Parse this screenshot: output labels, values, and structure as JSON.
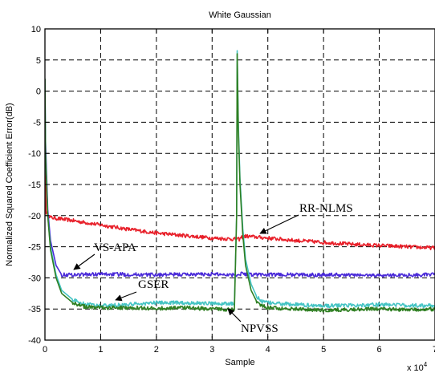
{
  "chart_data": {
    "type": "line",
    "title": "White Gaussian",
    "xlabel": "Sample",
    "ylabel": "Normalized Squared Coefficient Error(dB)",
    "x_exponent_label": "x 10",
    "x_exponent_power": "4",
    "xlim": [
      0,
      7
    ],
    "ylim": [
      -40,
      10
    ],
    "xticks": [
      "0",
      "1",
      "2",
      "3",
      "4",
      "5",
      "6",
      "7"
    ],
    "yticks": [
      "10",
      "5",
      "0",
      "-5",
      "-10",
      "-15",
      "-20",
      "-25",
      "-30",
      "-35",
      "-40"
    ],
    "grid": true,
    "grid_style": "dashed",
    "colors": {
      "RR-NLMS": "#e8202a",
      "VS-APA": "#4a2ad8",
      "GSER": "#45c4c4",
      "NPVSS": "#2f7f22"
    },
    "series": [
      {
        "name": "RR-NLMS",
        "x": [
          0,
          0.005,
          0.02,
          0.1,
          0.5,
          1,
          1.5,
          2,
          2.5,
          3,
          3.45,
          3.5,
          3.52,
          3.6,
          4,
          4.5,
          5,
          5.5,
          6,
          6.5,
          7
        ],
        "y": [
          2,
          -12,
          -19.5,
          -20.3,
          -20.8,
          -21.5,
          -22.2,
          -22.8,
          -23.2,
          -23.6,
          -23.8,
          -23.8,
          -23.5,
          -23.3,
          -23.6,
          -24,
          -24.3,
          -24.6,
          -24.8,
          -25,
          -25.2
        ]
      },
      {
        "name": "VS-APA",
        "x": [
          0,
          0.01,
          0.05,
          0.1,
          0.2,
          0.3,
          0.5,
          1,
          2,
          3,
          3.45,
          3.5,
          3.52,
          3.6,
          4,
          5,
          6,
          7
        ],
        "y": [
          1,
          -8,
          -19,
          -24,
          -28,
          -29.5,
          -29.5,
          -29.4,
          -29.5,
          -29.4,
          -29.5,
          -29.5,
          -29.2,
          -29.4,
          -29.5,
          -29.5,
          -29.6,
          -29.5
        ]
      },
      {
        "name": "GSER",
        "x": [
          0,
          0.01,
          0.05,
          0.1,
          0.2,
          0.3,
          0.5,
          0.7,
          1,
          1.5,
          2,
          2.5,
          3,
          3.4,
          3.44,
          3.45,
          3.47,
          3.5,
          3.55,
          3.6,
          3.7,
          3.8,
          3.9,
          4,
          4.5,
          5,
          5.5,
          6,
          6.5,
          7
        ],
        "y": [
          2,
          -10,
          -20,
          -25,
          -29.5,
          -32,
          -33.5,
          -34.2,
          -34.5,
          -34.3,
          -34,
          -34,
          -34.1,
          -34.2,
          -20,
          6.5,
          -5,
          -14,
          -22,
          -27,
          -31,
          -33,
          -33.8,
          -34,
          -34.3,
          -34.5,
          -34.4,
          -34.3,
          -34.4,
          -34.5
        ]
      },
      {
        "name": "NPVSS",
        "x": [
          0,
          0.01,
          0.05,
          0.1,
          0.2,
          0.3,
          0.5,
          0.7,
          1,
          1.5,
          2,
          2.5,
          3,
          3.4,
          3.44,
          3.45,
          3.47,
          3.5,
          3.55,
          3.6,
          3.7,
          3.8,
          3.9,
          4,
          4.5,
          5,
          5.5,
          6,
          6.5,
          7
        ],
        "y": [
          2,
          -10,
          -20,
          -25.5,
          -30,
          -32.5,
          -34,
          -34.6,
          -34.8,
          -34.8,
          -34.9,
          -34.8,
          -35,
          -35.1,
          -20,
          6,
          -6,
          -15,
          -23,
          -28,
          -32,
          -33.8,
          -34.5,
          -34.8,
          -35,
          -35.2,
          -35.1,
          -35,
          -35.1,
          -35
        ]
      }
    ],
    "annotations": [
      {
        "text": "RR-NLMS",
        "target_series": "RR-NLMS"
      },
      {
        "text": "VS-APA",
        "target_series": "VS-APA"
      },
      {
        "text": "GSER",
        "target_series": "GSER"
      },
      {
        "text": "NPVSS",
        "target_series": "NPVSS"
      }
    ]
  }
}
